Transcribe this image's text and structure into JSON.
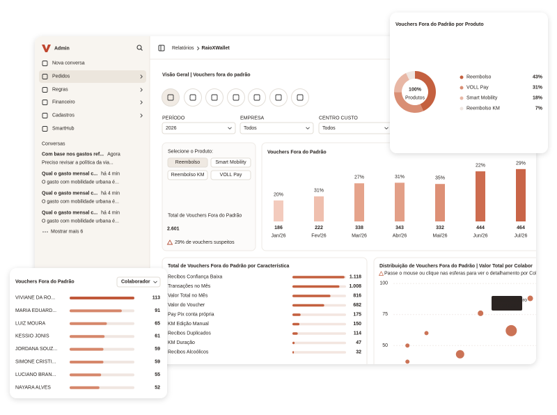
{
  "sidebar": {
    "brand": "Admin",
    "nav": [
      "Nova conversa",
      "Pedidos",
      "Regras",
      "Financeiro",
      "Cadastros",
      "SmartHub"
    ],
    "section": "Conversas",
    "conversations": [
      {
        "title": "Com base nos gastos ref...",
        "time": "Agora",
        "preview": "Preciso revisar a política da via..."
      },
      {
        "title": "Qual o gasto mensal c...",
        "time": "há 4 min",
        "preview": "O gasto com mobilidade urbana é..."
      },
      {
        "title": "Qual o gasto mensal c...",
        "time": "há 4 min",
        "preview": "O gasto com mobilidade urbana é..."
      },
      {
        "title": "Qual o gasto mensal c...",
        "time": "há 4 min",
        "preview": "O gasto com mobilidade urbana é..."
      }
    ],
    "more": "Mostrar mais 6"
  },
  "header": {
    "breadcrumb": [
      "Relatórios",
      "RaioXWallet"
    ]
  },
  "title": "Visão Geral | Vouchers fora do padrão",
  "filters": [
    {
      "label": "PERÍODO",
      "value": "2026"
    },
    {
      "label": "EMPRESA",
      "value": "Todos"
    },
    {
      "label": "CENTRO CUSTO",
      "value": "Todos"
    }
  ],
  "products": {
    "label": "Selecione o Produto:",
    "options": [
      "Reembolso",
      "Smart Mobility",
      "Reembolso KM",
      "VOLL Pay"
    ]
  },
  "kpi": {
    "label": "Total de Vouchers Fora do Padrão",
    "value": "2.601",
    "note": "29% de vouchers suspeitos"
  },
  "chart_data": [
    {
      "type": "bar",
      "title": "Vouchers Fora do Padrão",
      "categories": [
        "Jan/26",
        "Fev/26",
        "Mar/26",
        "Abr/26",
        "Mai/26",
        "Jun/26",
        "Jul/26"
      ],
      "values": [
        186,
        222,
        338,
        343,
        332,
        444,
        464
      ],
      "percent_labels": [
        "20%",
        "31%",
        "27%",
        "31%",
        "35%",
        "22%",
        "29%"
      ],
      "colors": [
        "#f3cbbd",
        "#efbfae",
        "#e5a38b",
        "#e29f87",
        "#dd9076",
        "#cd6c4f",
        "#c96548"
      ],
      "ylim": [
        0,
        500
      ]
    },
    {
      "type": "hbar",
      "title": "Total de Vouchers Fora do Padrão por Característica",
      "categories": [
        "Recibos Confiança Baixa",
        "Transações no Mês",
        "Valor Total no Mês",
        "Valor do Voucher",
        "Pay Pix conta própria",
        "KM Edição Manual",
        "Recibos Duplicados",
        "KM Duração",
        "Recibos Alcoólicos"
      ],
      "values": [
        1118,
        1008,
        816,
        682,
        175,
        150,
        114,
        47,
        32
      ],
      "value_labels": [
        "1.118",
        "1.008",
        "816",
        "682",
        "175",
        "150",
        "114",
        "47",
        "32"
      ],
      "color": "#c4603f",
      "xlim": [
        0,
        1150
      ]
    },
    {
      "type": "scatter",
      "title": "Distribuição de Vouchers Fora do Padrão | Valor Total por Colabor",
      "subtitle": "Passe o mouse ou clique nas esferas para ver o detalhamento por Colaborador",
      "x": [
        96,
        62,
        83,
        25,
        12,
        48,
        12
      ],
      "values": [
        88,
        76,
        62,
        60,
        50,
        43,
        37
      ],
      "sizes": [
        4,
        4,
        8,
        3,
        3,
        6,
        3
      ],
      "color": "#c4603f",
      "xlim": [
        0,
        100
      ],
      "ylim": [
        35,
        104
      ],
      "yticks": [
        100,
        75,
        50
      ],
      "tooltip": {
        "name": "Viviane Ribeiro",
        "value": "R$ 242.110"
      }
    },
    {
      "type": "pie",
      "title": "Vouchers Fora do Padrão por Produto",
      "center_label": "100%",
      "center_sublabel": "Produtos",
      "categories": [
        "Reembolso",
        "VOLL Pay",
        "Smart Mobility",
        "Reembolso KM"
      ],
      "values": [
        43,
        31,
        18,
        7
      ],
      "value_labels": [
        "43%",
        "31%",
        "18%",
        "7%"
      ],
      "colors": [
        "#c4603f",
        "#d98e74",
        "#e8b7a5",
        "#efe6e1"
      ]
    },
    {
      "type": "hbar",
      "title": "Vouchers Fora do Padrão",
      "dropdown": "Colaborador",
      "categories": [
        "VIVIANE DA RO...",
        "MARIA EDUARD...",
        "LUIZ MOURA",
        "KESSIO JONIS",
        "JORDANA SOUZ...",
        "SIMONE CRISTI...",
        "LUCIANO BRAN...",
        "NAYARA ALVES"
      ],
      "values": [
        113,
        91,
        65,
        61,
        59,
        59,
        55,
        52
      ],
      "colors": [
        "#c0583a",
        "#d6876b",
        "#d6876b",
        "#d6876b",
        "#d6876b",
        "#d6876b",
        "#d6876b",
        "#d6876b"
      ],
      "xlim": [
        0,
        113
      ]
    }
  ]
}
